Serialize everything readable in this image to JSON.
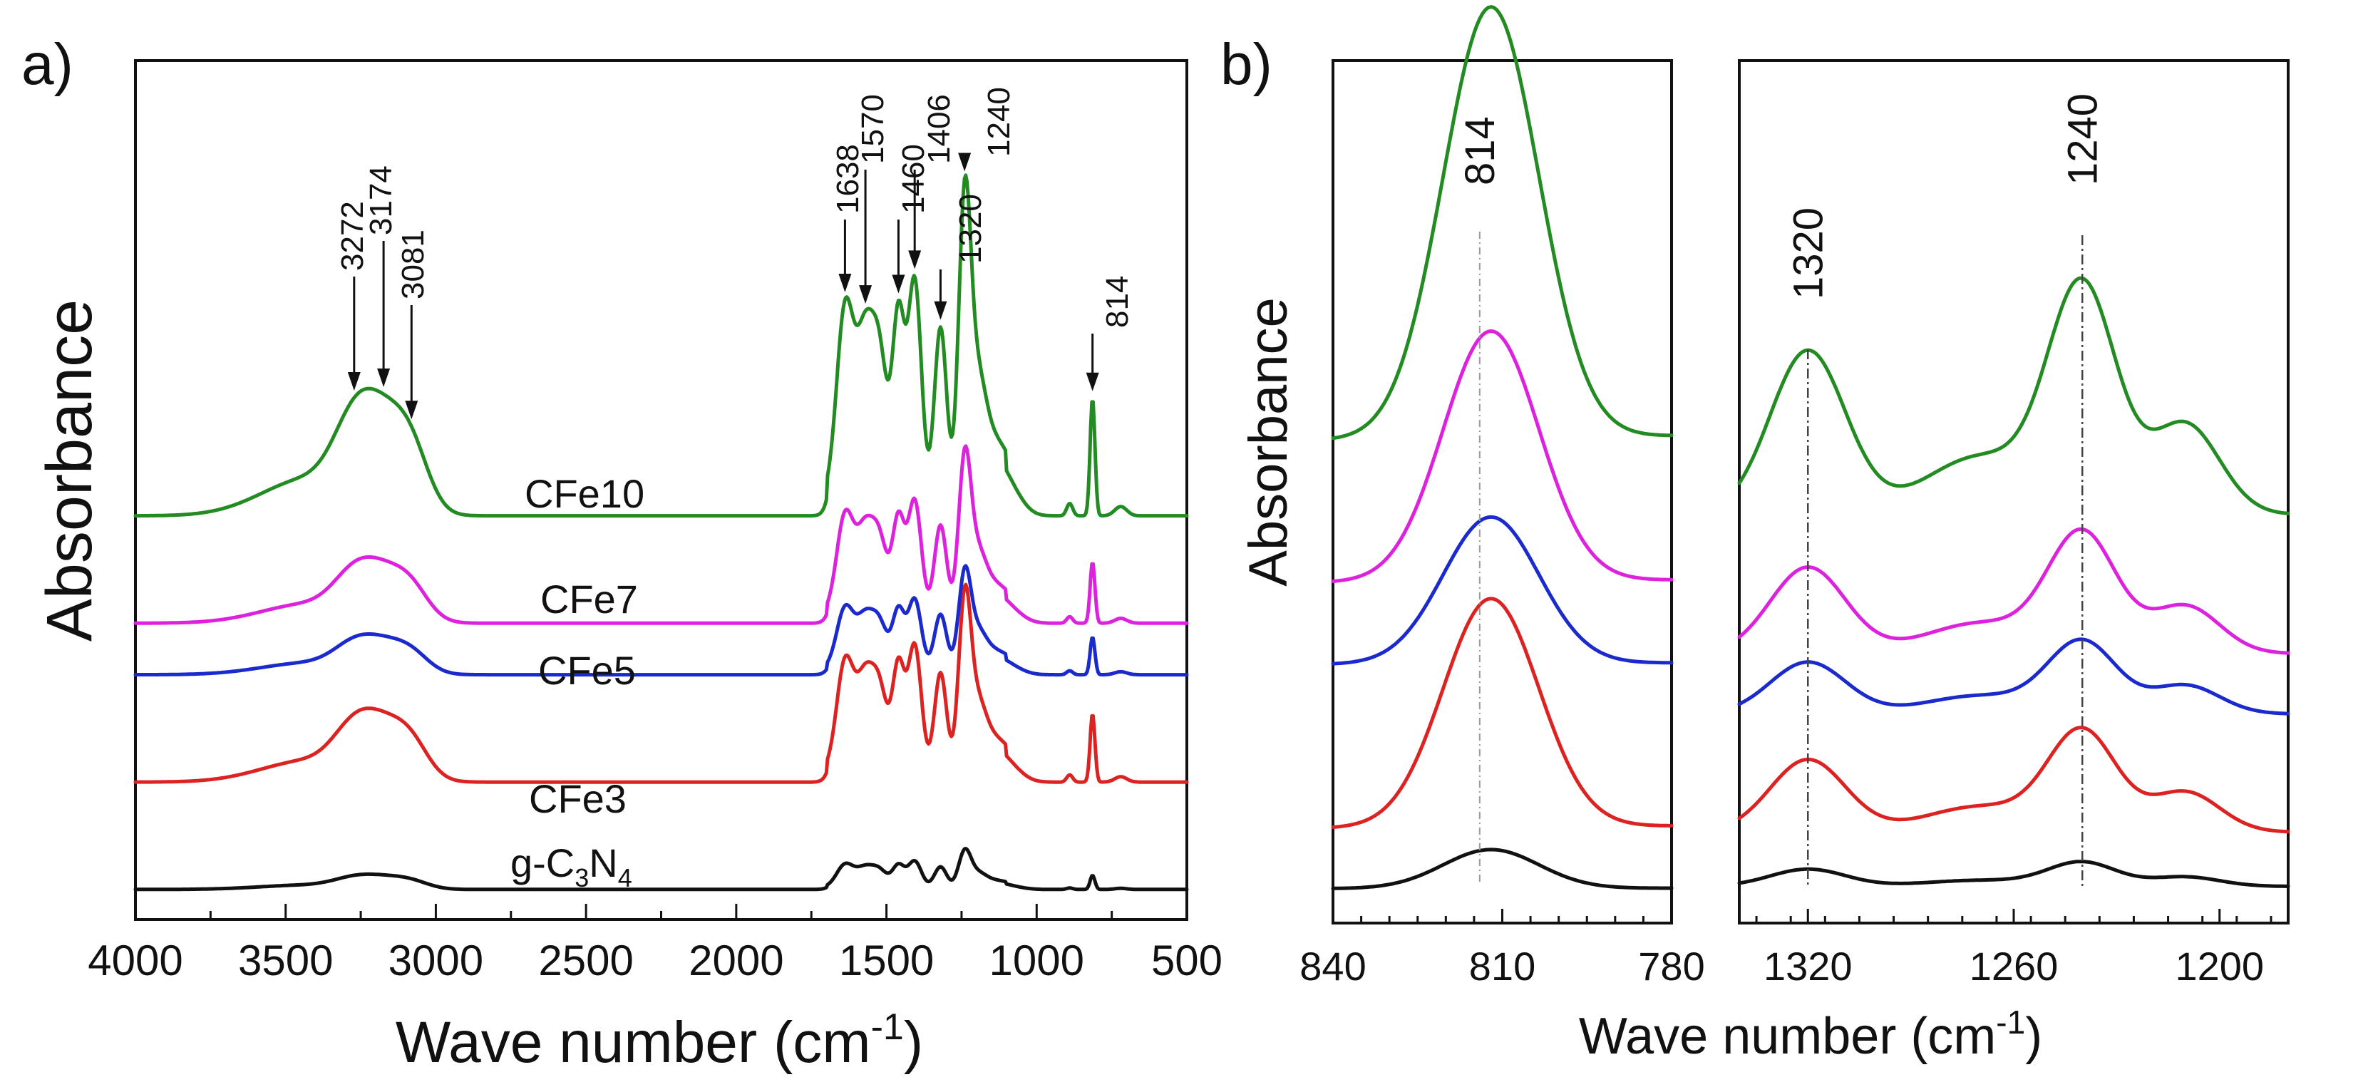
{
  "chart_data": [
    {
      "panel_label": "a)",
      "type": "line",
      "xlabel_main": "Wave number (cm",
      "xlabel_sup": "-1",
      "xlabel_end": ")",
      "ylabel": "Absorbance",
      "xlim": [
        4000,
        500
      ],
      "x_ticks": [
        "4000",
        "3500",
        "3000",
        "2500",
        "2000",
        "1500",
        "1000",
        "500"
      ],
      "x_tick_values": [
        4000,
        3500,
        3000,
        2500,
        2000,
        1500,
        1000,
        500
      ],
      "peak_annotations": [
        "3272",
        "3174",
        "3081",
        "1638",
        "1570",
        "1460",
        "1406",
        "1320",
        "1240",
        "814"
      ],
      "peak_positions": [
        3272,
        3174,
        3081,
        1638,
        1570,
        1460,
        1406,
        1320,
        1240,
        814
      ],
      "series": [
        {
          "name": "g-C3N4",
          "label_main": "g-C",
          "label_sub1": "3",
          "label_mid": "N",
          "label_sub2": "4",
          "color": "#111111",
          "baseline": 0.035,
          "scale": 0.12
        },
        {
          "name": "CFe3",
          "label": "CFe3",
          "color": "#dd2222",
          "baseline": 0.16,
          "scale": 0.58
        },
        {
          "name": "CFe5",
          "label": "CFe5",
          "color": "#1a2acc",
          "baseline": 0.285,
          "scale": 0.32
        },
        {
          "name": "CFe7",
          "label": "CFe7",
          "color": "#dd22dd",
          "baseline": 0.345,
          "scale": 0.52
        },
        {
          "name": "CFe10",
          "label": "CFe10",
          "color": "#228b22",
          "baseline": 0.47,
          "scale": 1.0
        }
      ]
    },
    {
      "panel_label": "b)",
      "type": "line",
      "ylabel": "Absorbance",
      "xlim": [
        840,
        780
      ],
      "x_ticks": [
        "840",
        "810",
        "780"
      ],
      "x_tick_values": [
        840,
        810,
        780
      ],
      "peak_annotations": [
        "814"
      ],
      "peak_positions": [
        814
      ],
      "series": [
        {
          "name": "g-C3N4",
          "color": "#111111",
          "baseline": 0.04,
          "amp": 0.045
        },
        {
          "name": "CFe3",
          "color": "#dd2222",
          "baseline": 0.11,
          "amp": 0.265
        },
        {
          "name": "CFe5",
          "color": "#1a2acc",
          "baseline": 0.3,
          "amp": 0.17
        },
        {
          "name": "CFe7",
          "color": "#dd22dd",
          "baseline": 0.395,
          "amp": 0.29
        },
        {
          "name": "CFe10",
          "color": "#228b22",
          "baseline": 0.56,
          "amp": 0.5
        }
      ]
    },
    {
      "type": "line",
      "xlabel_main": "Wave number (cm",
      "xlabel_sup": "-1",
      "xlabel_end": ")",
      "xlim": [
        1340,
        1180
      ],
      "x_ticks": [
        "1320",
        "1260",
        "1200"
      ],
      "x_tick_values": [
        1320,
        1260,
        1200
      ],
      "peak_annotations": [
        "1320",
        "1240"
      ],
      "peak_positions": [
        1320,
        1240
      ],
      "series": [
        {
          "name": "g-C3N4",
          "color": "#111111",
          "baseline": 0.04,
          "scale": 0.1
        },
        {
          "name": "CFe3",
          "color": "#dd2222",
          "baseline": 0.095,
          "scale": 0.42
        },
        {
          "name": "CFe5",
          "color": "#1a2acc",
          "baseline": 0.235,
          "scale": 0.3
        },
        {
          "name": "CFe7",
          "color": "#dd22dd",
          "baseline": 0.3,
          "scale": 0.5
        },
        {
          "name": "CFe10",
          "color": "#228b22",
          "baseline": 0.45,
          "scale": 0.95
        }
      ]
    }
  ]
}
